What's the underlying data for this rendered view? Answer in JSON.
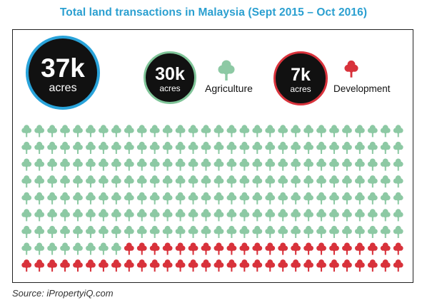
{
  "title": "Total land transactions in Malaysia (Sept 2015 – Oct 2016)",
  "summary": {
    "total": {
      "value": "37k",
      "unit": "acres"
    },
    "agriculture": {
      "value": "30k",
      "unit": "acres",
      "label": "Agriculture"
    },
    "development": {
      "value": "7k",
      "unit": "acres",
      "label": "Development"
    }
  },
  "chart_data": {
    "type": "pictograph",
    "title": "Total land transactions in Malaysia (Sept 2015 – Oct 2016)",
    "unit": "acres",
    "grid": {
      "columns": 30,
      "rows": 9
    },
    "categories": [
      "Agriculture",
      "Development"
    ],
    "values": [
      30000,
      7000
    ],
    "icon_counts": [
      218,
      52
    ],
    "series": [
      {
        "name": "Agriculture",
        "value": 30000,
        "icon_count": 218,
        "color": "#8dc9a4",
        "icon": "tree-icon"
      },
      {
        "name": "Development",
        "value": 7000,
        "icon_count": 52,
        "color": "#d8323b",
        "icon": "tree-icon"
      }
    ]
  },
  "colors": {
    "title": "#2a9fd0",
    "total_ring": "#29a3da",
    "agriculture": "#8dc9a4",
    "development": "#d8323b"
  },
  "source": "Source: iPropertyiQ.com"
}
